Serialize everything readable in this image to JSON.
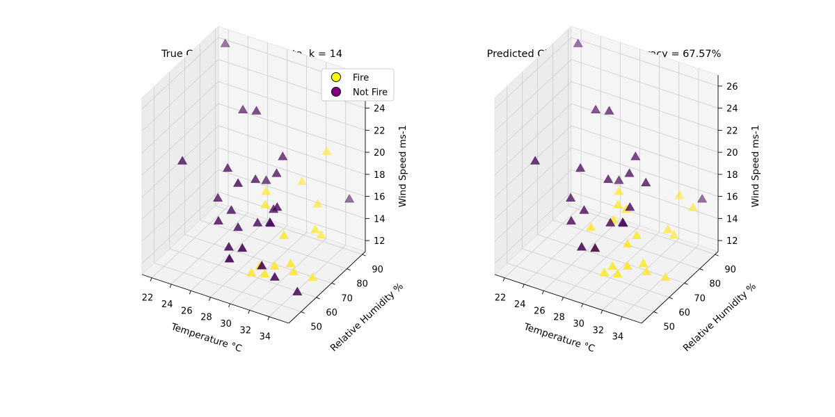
{
  "colors": {
    "fire": "#fde725",
    "not_fire": "#440154",
    "not_fire_marker": "#800080",
    "pane": "#f2f2f2",
    "grid": "#cccccc"
  },
  "chart_data": [
    {
      "type": "scatter",
      "subtype": "3d",
      "marker": "triangle",
      "title": "True Classes in Testing Data, k = 14",
      "xlabel": "Temperature °C",
      "ylabel": "Relative Humidity %",
      "zlabel": "Wind Speed ms-1",
      "xlim": [
        21,
        36
      ],
      "ylim": [
        42,
        92
      ],
      "zlim": [
        11,
        27
      ],
      "xticks": [
        "22",
        "24",
        "26",
        "28",
        "30",
        "32",
        "34"
      ],
      "yticks": [
        "50",
        "60",
        "70",
        "80",
        "90"
      ],
      "zticks": [
        "12",
        "14",
        "16",
        "18",
        "20",
        "22",
        "24",
        "26"
      ],
      "legend": {
        "position": "top-right",
        "entries": [
          {
            "label": "Fire",
            "class": "fire"
          },
          {
            "label": "Not Fire",
            "class": "not_fire"
          }
        ]
      },
      "grid": true,
      "series": [
        {
          "name": "Fire",
          "class": "fire",
          "points": [
            [
              30,
              89,
              16
            ],
            [
              33,
              80,
              16
            ],
            [
              30,
              65,
              17
            ],
            [
              29,
              72,
              17
            ],
            [
              34,
              56,
              14
            ],
            [
              34,
              72,
              15
            ],
            [
              33,
              58,
              16
            ],
            [
              30,
              56,
              12
            ],
            [
              31,
              55,
              13
            ],
            [
              34,
              58,
              13
            ],
            [
              32,
              52,
              13
            ],
            [
              33,
              52,
              14
            ],
            [
              34,
              76,
              14
            ],
            [
              33,
              86,
              20
            ],
            [
              35,
              64,
              12
            ]
          ]
        },
        {
          "name": "Not Fire",
          "class": "not_fire",
          "points": [
            [
              22,
              90,
              26
            ],
            [
              22,
              62,
              19
            ],
            [
              28,
              72,
              24
            ],
            [
              26,
              76,
              23
            ],
            [
              29,
              72,
              18
            ],
            [
              29,
              65,
              19
            ],
            [
              26,
              60,
              15
            ],
            [
              25,
              66,
              16
            ],
            [
              27,
              62,
              16
            ],
            [
              28,
              60,
              15
            ],
            [
              31,
              62,
              16
            ],
            [
              26,
              66,
              19
            ],
            [
              28,
              54,
              14
            ],
            [
              31,
              64,
              17
            ],
            [
              30,
              60,
              16
            ],
            [
              30,
              68,
              15
            ],
            [
              28,
              60,
              19
            ],
            [
              32,
              60,
              18
            ],
            [
              33,
              52,
              13
            ],
            [
              35,
              54,
              12
            ],
            [
              29,
              48,
              14
            ],
            [
              32,
              50,
              14
            ],
            [
              30,
              50,
              15
            ],
            [
              35,
              88,
              16
            ],
            [
              31,
              70,
              21
            ],
            [
              31,
              66,
              20
            ]
          ]
        }
      ]
    },
    {
      "type": "scatter",
      "subtype": "3d",
      "marker": "triangle",
      "title": "Predicted Classes, k = 14,  Accuracy = 67.57%",
      "xlabel": "Temperature °C",
      "ylabel": "Relative Humidity %",
      "zlabel": "Wind Speed ms-1",
      "xlim": [
        21,
        36
      ],
      "ylim": [
        42,
        92
      ],
      "zlim": [
        11,
        27
      ],
      "xticks": [
        "22",
        "24",
        "26",
        "28",
        "30",
        "32",
        "34"
      ],
      "yticks": [
        "50",
        "60",
        "70",
        "80",
        "90"
      ],
      "zticks": [
        "12",
        "14",
        "16",
        "18",
        "20",
        "22",
        "24",
        "26"
      ],
      "grid": true,
      "series": [
        {
          "name": "Fire",
          "class": "fire",
          "points": [
            [
              30,
              62,
              16
            ],
            [
              30,
              65,
              17
            ],
            [
              29,
              72,
              17
            ],
            [
              34,
              56,
              14
            ],
            [
              34,
              72,
              15
            ],
            [
              33,
              58,
              16
            ],
            [
              30,
              56,
              12
            ],
            [
              31,
              55,
              13
            ],
            [
              34,
              58,
              13
            ],
            [
              32,
              52,
              13
            ],
            [
              33,
              52,
              14
            ],
            [
              34,
              76,
              14
            ],
            [
              35,
              64,
              12
            ],
            [
              33,
              52,
              16
            ],
            [
              28,
              60,
              15
            ],
            [
              33,
              86,
              16
            ],
            [
              35,
              82,
              16
            ],
            [
              31,
              64,
              17
            ],
            [
              30,
              50,
              15
            ]
          ]
        },
        {
          "name": "Not Fire",
          "class": "not_fire",
          "points": [
            [
              22,
              90,
              26
            ],
            [
              22,
              62,
              19
            ],
            [
              28,
              72,
              24
            ],
            [
              26,
              76,
              23
            ],
            [
              29,
              72,
              18
            ],
            [
              29,
              65,
              19
            ],
            [
              26,
              60,
              15
            ],
            [
              25,
              66,
              16
            ],
            [
              27,
              62,
              16
            ],
            [
              31,
              62,
              16
            ],
            [
              26,
              66,
              19
            ],
            [
              28,
              54,
              14
            ],
            [
              30,
              60,
              16
            ],
            [
              30,
              68,
              15
            ],
            [
              31,
              70,
              21
            ],
            [
              31,
              66,
              20
            ],
            [
              32,
              60,
              18
            ],
            [
              35,
              88,
              16
            ],
            [
              33,
              64,
              20
            ],
            [
              30,
              50,
              15
            ]
          ]
        }
      ]
    }
  ]
}
